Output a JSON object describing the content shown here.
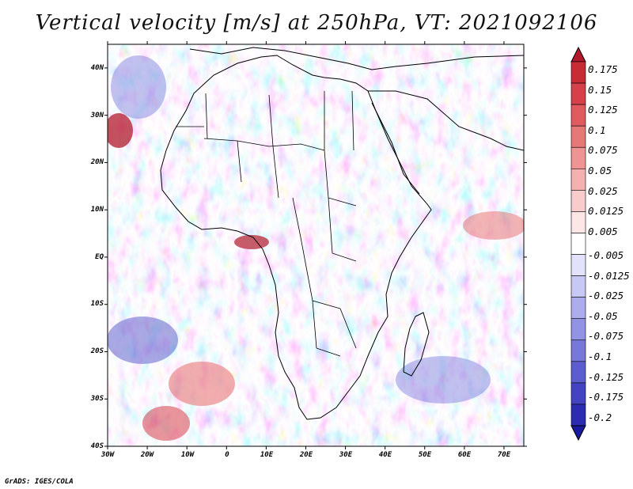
{
  "title": "Vertical velocity [m/s] at 250hPa, VT: 2021092106",
  "credit": "GrADS: IGES/COLA",
  "map": {
    "lon_range": [
      -30,
      75
    ],
    "lat_range": [
      -40,
      45
    ],
    "x_ticks": [
      "30W",
      "20W",
      "10W",
      "0",
      "10E",
      "20E",
      "30E",
      "40E",
      "50E",
      "60E",
      "70E"
    ],
    "y_ticks": [
      "40N",
      "30N",
      "20N",
      "10N",
      "EQ",
      "10S",
      "20S",
      "30S",
      "40S"
    ]
  },
  "colorbar": {
    "labels": [
      "0.175",
      "0.15",
      "0.125",
      "0.1",
      "0.075",
      "0.05",
      "0.025",
      "0.0125",
      "0.005",
      "-0.005",
      "-0.0125",
      "-0.025",
      "-0.05",
      "-0.075",
      "-0.1",
      "-0.125",
      "-0.175",
      "-0.2"
    ],
    "colors": [
      "#b2182b",
      "#c62c34",
      "#d6404a",
      "#e05a5f",
      "#e87778",
      "#f09393",
      "#f5b0b0",
      "#f9cccc",
      "#fce6e6",
      "#ffffff",
      "#e2e2fb",
      "#c8c8f5",
      "#adadee",
      "#9393e5",
      "#7878dc",
      "#5d5dd2",
      "#4343c4",
      "#2b2bb3",
      "#1a1a9c"
    ]
  },
  "colors": {
    "positive": "#e05a5f",
    "negative": "#6a6ad8",
    "coast": "#000000"
  }
}
